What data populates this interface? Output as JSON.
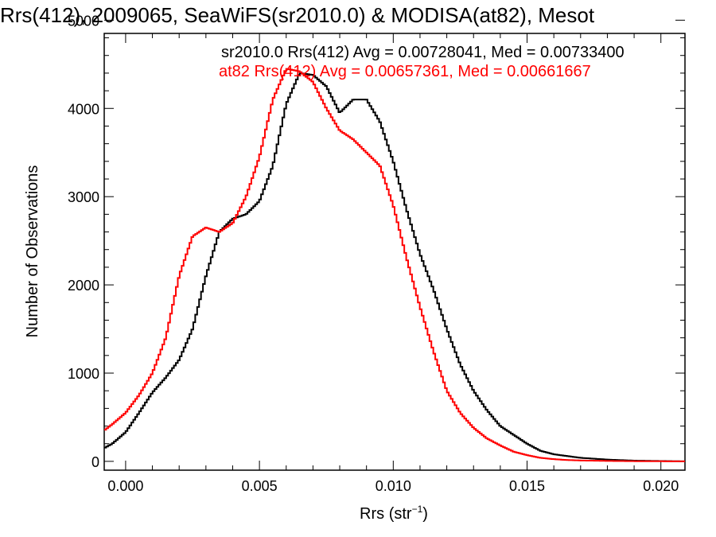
{
  "chart_data": {
    "type": "line",
    "title": "Rrs(412), 2009065, SeaWiFS(sr2010.0) & MODISA(at82), Mesot",
    "xlabel_main": "Rrs (str",
    "xlabel_sup": "−1",
    "xlabel_tail": ")",
    "ylabel": "Number of Observations",
    "xlim": [
      -0.0008,
      0.0209
    ],
    "ylim": [
      -100,
      4850
    ],
    "x_ticks": [
      0.0,
      0.005,
      0.01,
      0.015,
      0.02
    ],
    "x_tick_labels": [
      "0.000",
      "0.005",
      "0.010",
      "0.015",
      "0.020"
    ],
    "y_ticks": [
      0,
      1000,
      2000,
      3000,
      4000,
      5000
    ],
    "y_tick_labels": [
      "0",
      "1000",
      "2000",
      "3000",
      "4000",
      "5000"
    ],
    "grid": false,
    "legend_placement": "top-right",
    "series": [
      {
        "name": "sr2010.0 Rrs(412) Avg = 0.00728041, Med = 0.00733400",
        "color": "#000000",
        "x": [
          -0.0008,
          -0.0005,
          0.0,
          0.0005,
          0.001,
          0.0015,
          0.002,
          0.0025,
          0.003,
          0.0035,
          0.004,
          0.0045,
          0.005,
          0.0055,
          0.006,
          0.0065,
          0.007,
          0.0075,
          0.008,
          0.0085,
          0.009,
          0.0095,
          0.01,
          0.0105,
          0.011,
          0.0115,
          0.012,
          0.0125,
          0.013,
          0.0135,
          0.014,
          0.0145,
          0.015,
          0.0155,
          0.016,
          0.0165,
          0.017,
          0.018,
          0.019,
          0.0209
        ],
        "y": [
          150,
          200,
          330,
          550,
          780,
          950,
          1150,
          1500,
          2100,
          2600,
          2750,
          2800,
          2950,
          3350,
          4050,
          4400,
          4380,
          4250,
          3950,
          4100,
          4100,
          3850,
          3400,
          2850,
          2350,
          1950,
          1500,
          1100,
          800,
          580,
          400,
          300,
          200,
          120,
          80,
          60,
          40,
          20,
          8,
          0
        ]
      },
      {
        "name": "at82 Rrs(412) Avg = 0.00657361, Med = 0.00661667",
        "color": "#ff0000",
        "x": [
          -0.0008,
          -0.0005,
          0.0,
          0.0005,
          0.001,
          0.0015,
          0.002,
          0.0025,
          0.003,
          0.0035,
          0.004,
          0.0045,
          0.005,
          0.0055,
          0.006,
          0.0065,
          0.007,
          0.0075,
          0.008,
          0.0085,
          0.009,
          0.0095,
          0.01,
          0.0105,
          0.011,
          0.0115,
          0.012,
          0.0125,
          0.013,
          0.0135,
          0.014,
          0.0145,
          0.015,
          0.0155,
          0.016,
          0.0165,
          0.017,
          0.018,
          0.019,
          0.0209
        ],
        "y": [
          350,
          420,
          550,
          750,
          1000,
          1400,
          2100,
          2550,
          2650,
          2600,
          2700,
          3000,
          3450,
          4100,
          4450,
          4420,
          4300,
          4000,
          3750,
          3650,
          3500,
          3350,
          2900,
          2300,
          1750,
          1250,
          800,
          550,
          380,
          260,
          180,
          110,
          70,
          40,
          25,
          15,
          10,
          5,
          2,
          0
        ]
      }
    ]
  }
}
